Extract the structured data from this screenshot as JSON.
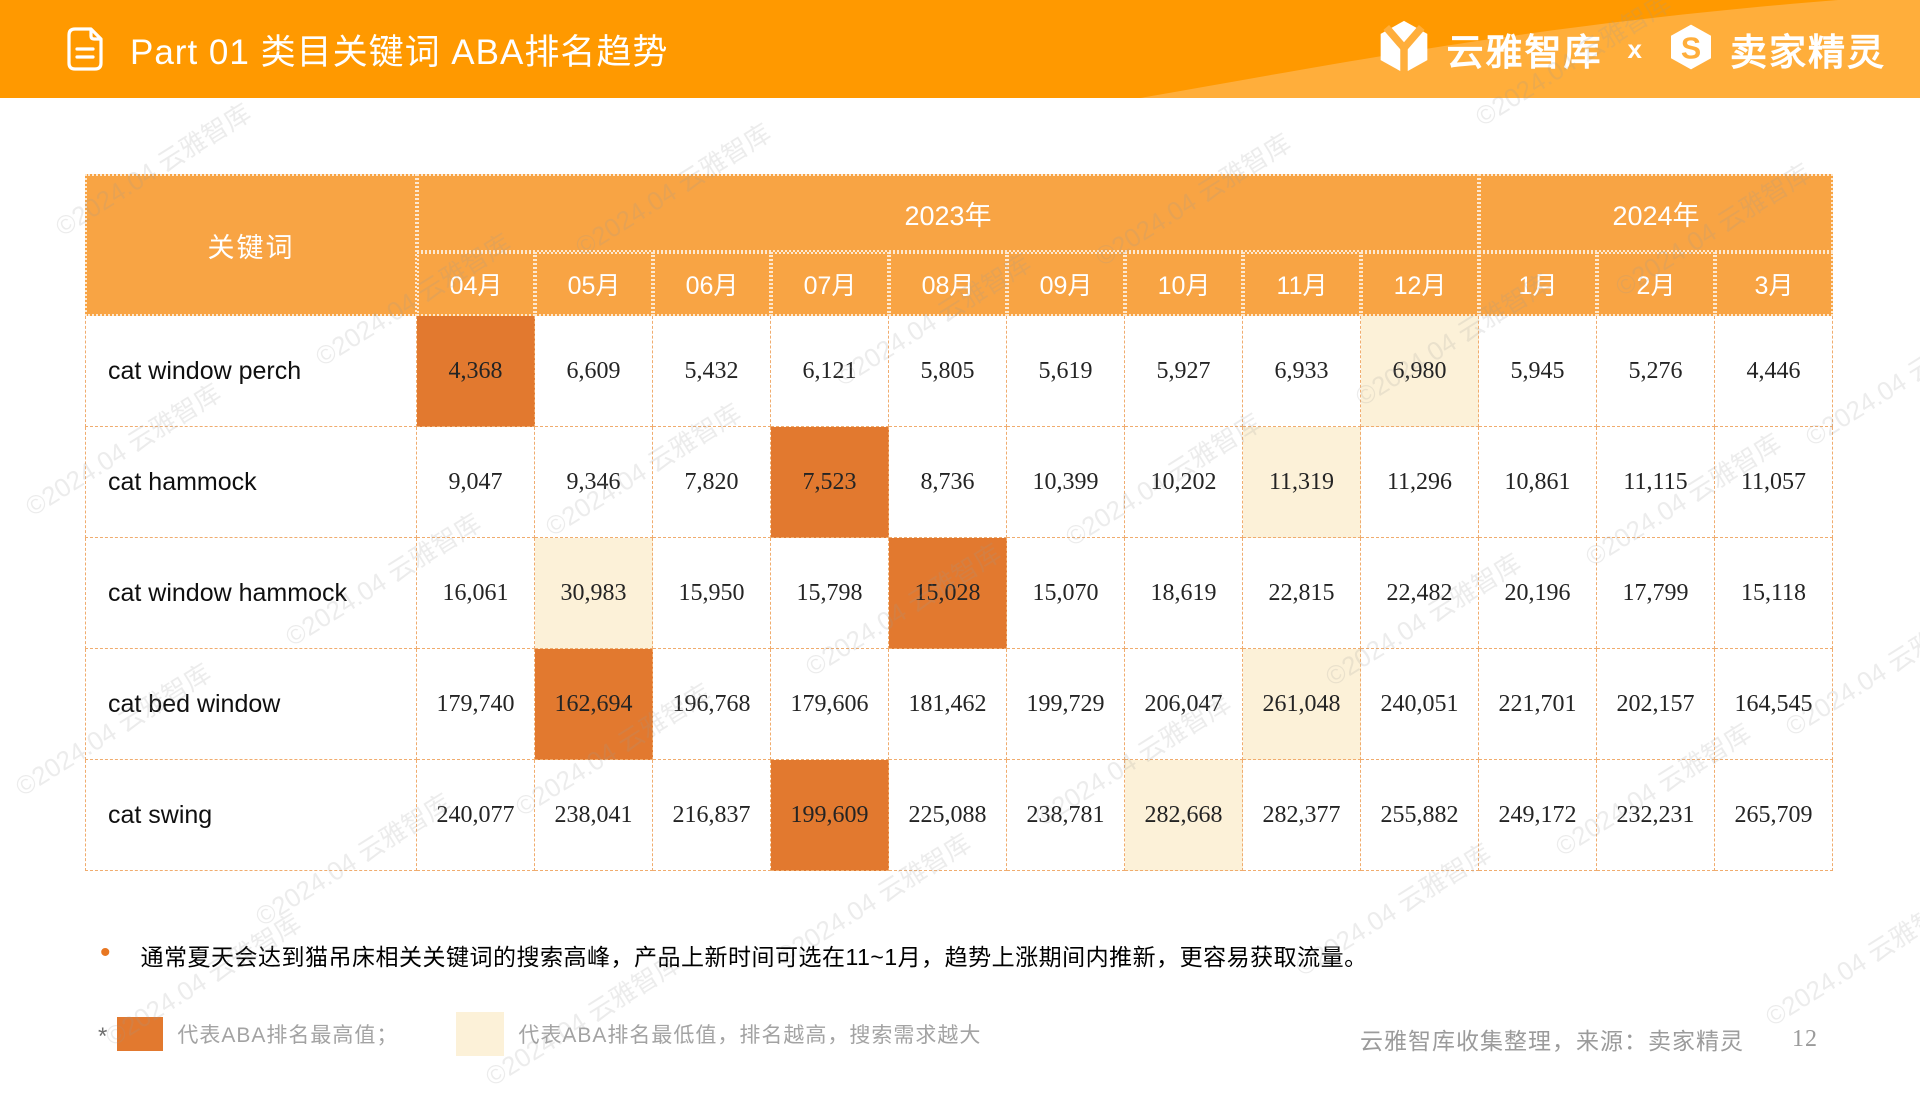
{
  "slide": {
    "watermark": "©2024.04 云雅智库"
  },
  "header": {
    "title": "Part 01 类目关键词 ABA排名趋势",
    "brand_left": "云雅智库",
    "separator": "x",
    "brand_right": "卖家精灵"
  },
  "table": {
    "keyword_header": "关键词",
    "year_groups": [
      {
        "label": "2023年",
        "months": [
          "04月",
          "05月",
          "06月",
          "07月",
          "08月",
          "09月",
          "10月",
          "11月",
          "12月"
        ]
      },
      {
        "label": "2024年",
        "months": [
          "1月",
          "2月",
          "3月"
        ]
      }
    ],
    "rows": [
      {
        "keyword": "cat window perch",
        "values": [
          "4,368",
          "6,609",
          "5,432",
          "6,121",
          "5,805",
          "5,619",
          "5,927",
          "6,933",
          "6,980",
          "5,945",
          "5,276",
          "4,446"
        ],
        "highest_index": 0,
        "lowest_index": 8
      },
      {
        "keyword": "cat hammock",
        "values": [
          "9,047",
          "9,346",
          "7,820",
          "7,523",
          "8,736",
          "10,399",
          "10,202",
          "11,319",
          "11,296",
          "10,861",
          "11,115",
          "11,057"
        ],
        "highest_index": 3,
        "lowest_index": 7
      },
      {
        "keyword": "cat window hammock",
        "values": [
          "16,061",
          "30,983",
          "15,950",
          "15,798",
          "15,028",
          "15,070",
          "18,619",
          "22,815",
          "22,482",
          "20,196",
          "17,799",
          "15,118"
        ],
        "highest_index": 4,
        "lowest_index": 1
      },
      {
        "keyword": "cat bed window",
        "values": [
          "179,740",
          "162,694",
          "196,768",
          "179,606",
          "181,462",
          "199,729",
          "206,047",
          "261,048",
          "240,051",
          "221,701",
          "202,157",
          "164,545"
        ],
        "highest_index": 1,
        "lowest_index": 7
      },
      {
        "keyword": "cat swing",
        "values": [
          "240,077",
          "238,041",
          "216,837",
          "199,609",
          "225,088",
          "238,781",
          "282,668",
          "282,377",
          "255,882",
          "249,172",
          "232,231",
          "265,709"
        ],
        "highest_index": 3,
        "lowest_index": 6
      }
    ]
  },
  "note": {
    "bullet": "•",
    "text": "通常夏天会达到猫吊床相关关键词的搜索高峰，产品上新时间可选在11~1月，趋势上涨期间内推新，更容易获取流量。"
  },
  "legend": {
    "asterisk": "*",
    "highest_label": "代表ABA排名最高值；",
    "lowest_label": "代表ABA排名最低值，排名越高，搜索需求越大"
  },
  "footer": {
    "source": "云雅智库收集整理，来源：卖家精灵",
    "page": "12"
  },
  "colors": {
    "header_bar": "#FF9900",
    "header_bar_light": "#FFAE3B",
    "table_header": "#F8A444",
    "highest_cell": "#E2792F",
    "lowest_cell": "#FCF1D8",
    "cell_border": "#F0AC6E",
    "bullet": "#E87722",
    "muted_text": "#A3A3A3"
  }
}
